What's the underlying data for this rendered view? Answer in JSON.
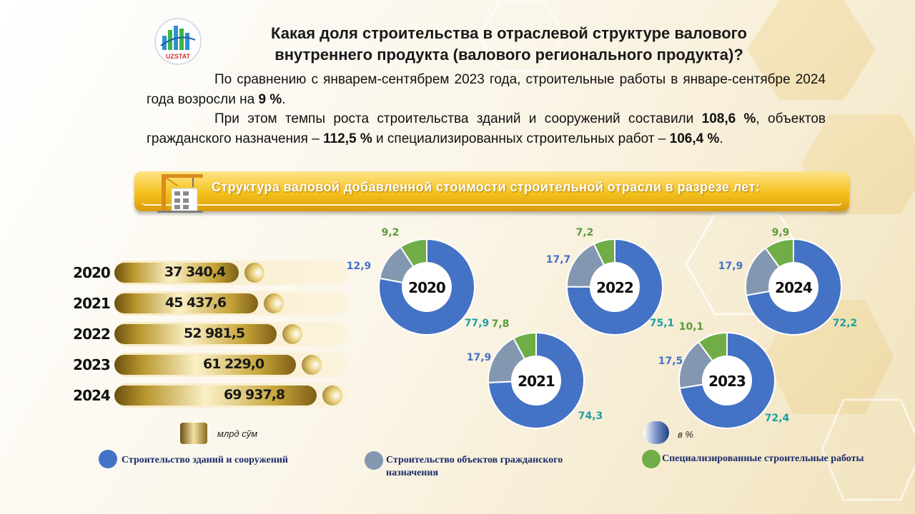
{
  "header": {
    "logo_text": "UZSTAT",
    "title_line1": "Какая доля строительства в отраслевой структуре валового",
    "title_line2": "внутреннего продукта (валового регионального продукта)?"
  },
  "intro": {
    "p1_text": "По сравнению с январем-сентябрем 2023 года, строительные работы в январе-сентябре 2024 года возросли на ",
    "p1_bold": "9 %",
    "p1_end": ".",
    "p2_a": "При этом темпы роста строительства зданий и сооружений составили ",
    "p2_b1": "108,6 %",
    "p2_c": ", объектов гражданского назначения – ",
    "p2_b2": "112,5 %",
    "p2_d": " и специализированных строительных работ – ",
    "p2_b3": "106,4 %",
    "p2_e": "."
  },
  "banner": {
    "title": "Структура валовой добавленной стоимости строительной отрасли в разрезе лет:"
  },
  "legend": {
    "unit_bars": "млрд сўм",
    "unit_donuts": "в %",
    "items": [
      {
        "label": "Строительство зданий и сооружений",
        "color": "#4472c4"
      },
      {
        "label": "Строительство объектов гражданского назначения",
        "color": "#8497b0"
      },
      {
        "label": "Специализированные строительные работы",
        "color": "#70ad47"
      }
    ]
  },
  "chart_data": [
    {
      "type": "bar",
      "orientation": "horizontal",
      "unit": "млрд сўм",
      "categories": [
        "2020",
        "2021",
        "2022",
        "2023",
        "2024"
      ],
      "values": [
        37340.4,
        45437.6,
        52981.5,
        61229.0,
        69937.8
      ],
      "labels": [
        "37 340,4",
        "45 437,6",
        "52 981,5",
        "61 229,0",
        "69 937,8"
      ],
      "xlim": [
        0,
        75000
      ]
    },
    {
      "type": "pie",
      "style": "donut",
      "unit": "в %",
      "series_colors": [
        "#4472c4",
        "#8497b0",
        "#70ad47"
      ],
      "series_names": [
        "Строительство зданий и сооружений",
        "Строительство объектов гражданского назначения",
        "Специализированные строительные работы"
      ],
      "donuts": [
        {
          "year": "2020",
          "values": [
            77.9,
            12.9,
            9.2
          ],
          "labels": [
            "77,9",
            "12,9",
            "9,2"
          ]
        },
        {
          "year": "2021",
          "values": [
            74.3,
            17.9,
            7.8
          ],
          "labels": [
            "74,3",
            "17,9",
            "7,8"
          ]
        },
        {
          "year": "2022",
          "values": [
            75.1,
            17.7,
            7.2
          ],
          "labels": [
            "75,1",
            "17,7",
            "7,2"
          ]
        },
        {
          "year": "2023",
          "values": [
            72.4,
            17.5,
            10.1
          ],
          "labels": [
            "72,4",
            "17,5",
            "10,1"
          ]
        },
        {
          "year": "2024",
          "values": [
            72.2,
            17.9,
            9.9
          ],
          "labels": [
            "72,2",
            "17,9",
            "9,9"
          ]
        }
      ]
    }
  ]
}
